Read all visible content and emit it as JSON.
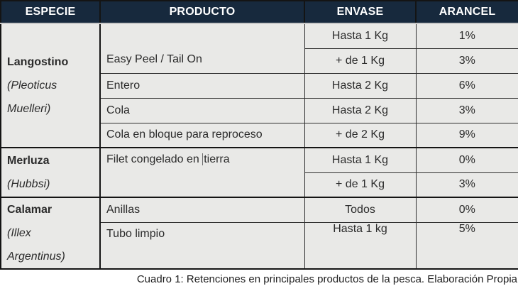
{
  "headers": [
    "ESPECIE",
    "PRODUCTO",
    "ENVASE",
    "ARANCEL"
  ],
  "species": {
    "langostino": {
      "name": "Langostino",
      "sci1": "(Pleoticus",
      "sci2": "Muelleri)"
    },
    "merluza": {
      "name": "Merluza",
      "sci1": "(Hubbsi)"
    },
    "calamar": {
      "name": "Calamar",
      "sci1": "(Illex",
      "sci2": "Argentinus)"
    }
  },
  "products": {
    "easy_peel": "Easy Peel / Tail On",
    "entero": "Entero",
    "cola": "Cola",
    "cola_bloque": "Cola en bloque para reproceso",
    "filet_before_cursor": "Filet congelado en ",
    "filet_after_cursor": "tierra",
    "anillas": "Anillas",
    "tubo": "Tubo limpio"
  },
  "rows": [
    {
      "envase": "Hasta 1 Kg",
      "arancel": "1%"
    },
    {
      "envase": "+ de 1 Kg",
      "arancel": "3%"
    },
    {
      "envase": "Hasta 2 Kg",
      "arancel": "6%"
    },
    {
      "envase": "Hasta 2 Kg",
      "arancel": "3%"
    },
    {
      "envase": "+ de 2 Kg",
      "arancel": "9%"
    },
    {
      "envase": "Hasta 1 Kg",
      "arancel": "0%"
    },
    {
      "envase": "+ de 1 Kg",
      "arancel": "3%"
    },
    {
      "envase": "Todos",
      "arancel": "0%"
    },
    {
      "envase": "Hasta 1 kg",
      "arancel": "5%"
    }
  ],
  "caption": "Cuadro 1: Retenciones en principales productos de la pesca. Elaboración Propia",
  "colors": {
    "header_bg": "#17293d",
    "header_text": "#ffffff",
    "cell_bg": "#e9e9e7",
    "border_dark": "#141414",
    "text": "#2b2b2b"
  }
}
